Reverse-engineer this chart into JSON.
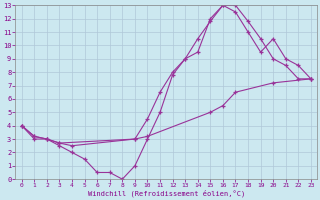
{
  "xlabel": "Windchill (Refroidissement éolien,°C)",
  "background_color": "#cce8f0",
  "line_color": "#993399",
  "grid_color": "#b0c8d8",
  "xlim": [
    -0.5,
    23.5
  ],
  "ylim": [
    0,
    13
  ],
  "xtick_labels": [
    "0",
    "1",
    "2",
    "3",
    "4",
    "5",
    "6",
    "7",
    "8",
    "9",
    "10",
    "11",
    "12",
    "13",
    "14",
    "15",
    "16",
    "17",
    "18",
    "19",
    "20",
    "21",
    "22",
    "23"
  ],
  "ytick_labels": [
    "0",
    "1",
    "2",
    "3",
    "4",
    "5",
    "6",
    "7",
    "8",
    "9",
    "10",
    "11",
    "12",
    "13"
  ],
  "lines": [
    {
      "x": [
        0,
        1,
        2,
        3,
        4,
        5,
        6,
        7,
        8,
        9,
        10,
        11,
        12,
        13,
        14,
        15,
        16,
        17,
        18,
        19,
        20,
        21,
        22,
        23
      ],
      "y": [
        4,
        3,
        3,
        2.5,
        2,
        1.5,
        0.5,
        0.5,
        0,
        1.0,
        3.0,
        5.0,
        7.8,
        9.0,
        9.5,
        12.0,
        13.0,
        13.0,
        11.8,
        10.5,
        9.0,
        8.5,
        7.5,
        7.5
      ]
    },
    {
      "x": [
        0,
        1,
        2,
        3,
        4,
        9,
        10,
        11,
        12,
        13,
        14,
        15,
        16,
        17,
        18,
        19,
        20,
        21,
        22,
        23
      ],
      "y": [
        4,
        3.2,
        3,
        2.7,
        2.5,
        3.0,
        4.5,
        6.5,
        8.0,
        9.0,
        10.5,
        11.8,
        13.0,
        12.5,
        11.0,
        9.5,
        10.5,
        9.0,
        8.5,
        7.5
      ]
    },
    {
      "x": [
        0,
        1,
        2,
        3,
        9,
        10,
        15,
        16,
        17,
        20,
        23
      ],
      "y": [
        4,
        3.2,
        3,
        2.7,
        3.0,
        3.2,
        5.0,
        5.5,
        6.5,
        7.2,
        7.5
      ]
    }
  ]
}
